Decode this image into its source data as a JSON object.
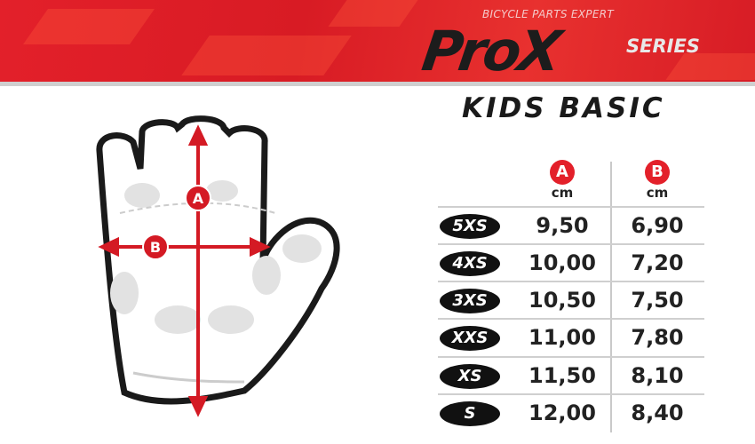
{
  "brand": {
    "tagline": "BICYCLE PARTS EXPERT",
    "logo": "ProX",
    "series": "SERIES"
  },
  "title": "KIDS BASIC",
  "diagram": {
    "label_a": "A",
    "label_b": "B"
  },
  "table": {
    "columns": [
      {
        "label": "A",
        "unit": "cm"
      },
      {
        "label": "B",
        "unit": "cm"
      }
    ],
    "rows": [
      {
        "size": "5XS",
        "a": "9,50",
        "b": "6,90"
      },
      {
        "size": "4XS",
        "a": "10,00",
        "b": "7,20"
      },
      {
        "size": "3XS",
        "a": "10,50",
        "b": "7,50"
      },
      {
        "size": "XXS",
        "a": "11,00",
        "b": "7,80"
      },
      {
        "size": "XS",
        "a": "11,50",
        "b": "8,10"
      },
      {
        "size": "S",
        "a": "12,00",
        "b": "8,40"
      }
    ]
  },
  "colors": {
    "accent": "#e3202a",
    "dark": "#111111"
  }
}
